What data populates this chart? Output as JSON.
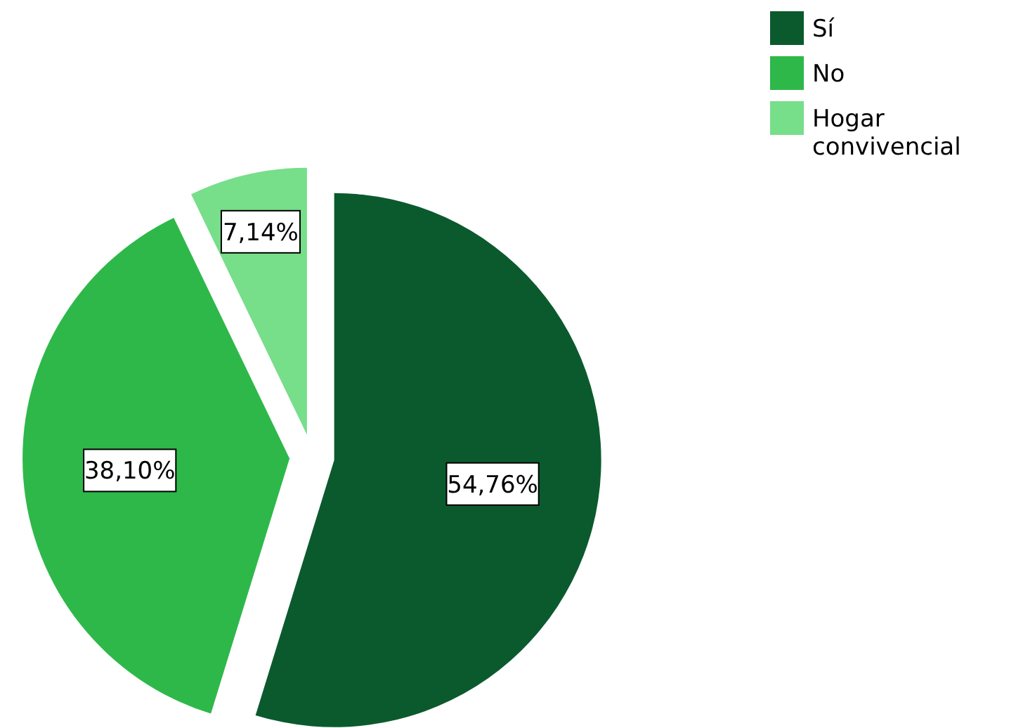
{
  "chart_data": {
    "type": "pie",
    "categories": [
      "Sí",
      "No",
      "Hogar convivencial"
    ],
    "values": [
      54.76,
      38.1,
      7.14
    ],
    "colors": [
      "#0b5a2e",
      "#2eb84a",
      "#77de8a"
    ],
    "value_labels": [
      "54,76%",
      "38,10%",
      "7,14%"
    ],
    "legend": "top right"
  }
}
